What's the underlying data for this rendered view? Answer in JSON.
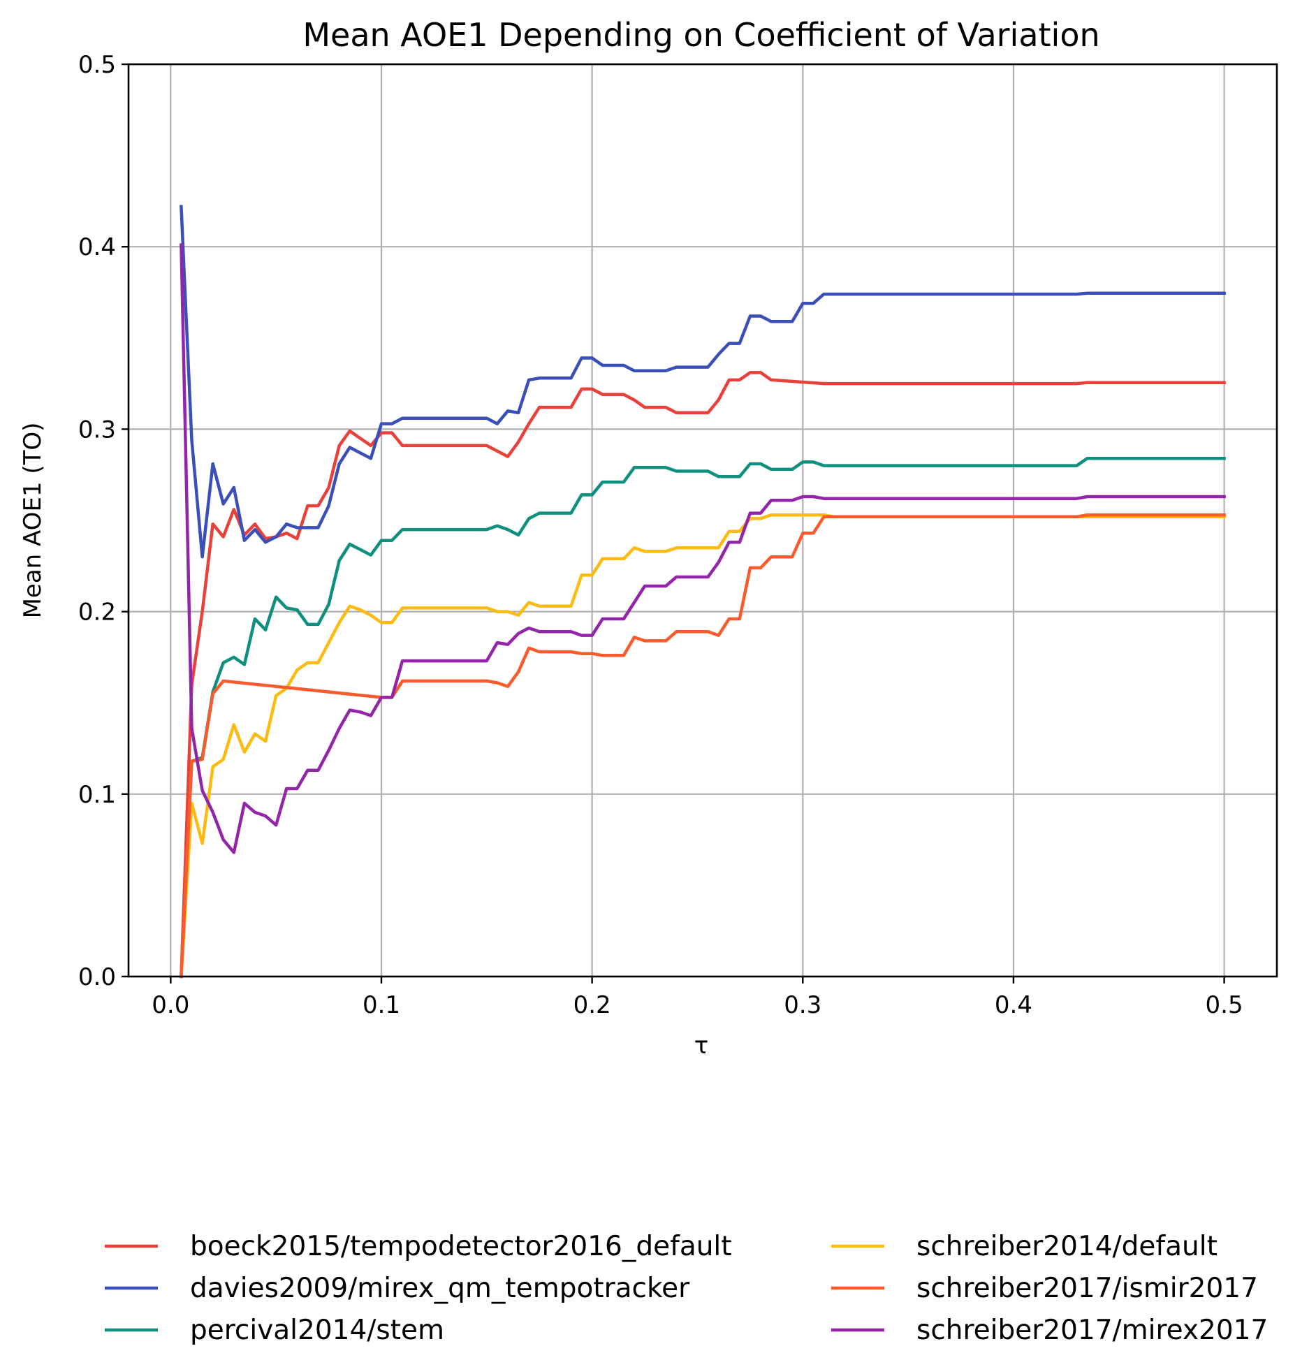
{
  "chart_data": {
    "type": "line",
    "title": "Mean AOE1 Depending on Coefficient of Variation",
    "xlabel": "τ",
    "ylabel": "Mean AOE1 (TO)",
    "xlim": [
      -0.02,
      0.525
    ],
    "ylim": [
      0.0,
      0.5
    ],
    "x_ticks": [
      0.0,
      0.1,
      0.2,
      0.3,
      0.4,
      0.5
    ],
    "x_tick_labels": [
      "0.0",
      "0.1",
      "0.2",
      "0.3",
      "0.4",
      "0.5"
    ],
    "y_ticks": [
      0.0,
      0.1,
      0.2,
      0.3,
      0.4,
      0.5
    ],
    "y_tick_labels": [
      "0.0",
      "0.1",
      "0.2",
      "0.3",
      "0.4",
      "0.5"
    ],
    "grid": true,
    "legend_position": "bottom, below plot, two columns",
    "series": [
      {
        "name": "boeck2015/tempodetector2016_default",
        "color": "#e8403a",
        "points": [
          [
            0.005,
            0.0
          ],
          [
            0.01,
            0.16
          ],
          [
            0.015,
            0.2
          ],
          [
            0.02,
            0.248
          ],
          [
            0.025,
            0.241
          ],
          [
            0.03,
            0.256
          ],
          [
            0.035,
            0.242
          ],
          [
            0.04,
            0.248
          ],
          [
            0.045,
            0.24
          ],
          [
            0.05,
            0.241
          ],
          [
            0.055,
            0.243
          ],
          [
            0.06,
            0.24
          ],
          [
            0.065,
            0.258
          ],
          [
            0.07,
            0.258
          ],
          [
            0.075,
            0.268
          ],
          [
            0.08,
            0.291
          ],
          [
            0.085,
            0.299
          ],
          [
            0.09,
            0.295
          ],
          [
            0.095,
            0.291
          ],
          [
            0.1,
            0.298
          ],
          [
            0.105,
            0.298
          ],
          [
            0.11,
            0.291
          ],
          [
            0.15,
            0.291
          ],
          [
            0.155,
            0.288
          ],
          [
            0.16,
            0.285
          ],
          [
            0.165,
            0.293
          ],
          [
            0.17,
            0.303
          ],
          [
            0.175,
            0.312
          ],
          [
            0.19,
            0.312
          ],
          [
            0.195,
            0.322
          ],
          [
            0.2,
            0.322
          ],
          [
            0.205,
            0.319
          ],
          [
            0.215,
            0.319
          ],
          [
            0.22,
            0.316
          ],
          [
            0.225,
            0.312
          ],
          [
            0.235,
            0.312
          ],
          [
            0.24,
            0.309
          ],
          [
            0.255,
            0.309
          ],
          [
            0.26,
            0.316
          ],
          [
            0.265,
            0.327
          ],
          [
            0.27,
            0.327
          ],
          [
            0.275,
            0.331
          ],
          [
            0.28,
            0.331
          ],
          [
            0.285,
            0.327
          ],
          [
            0.31,
            0.325
          ],
          [
            0.43,
            0.325
          ],
          [
            0.435,
            0.3255
          ],
          [
            0.5,
            0.3255
          ]
        ]
      },
      {
        "name": "davies2009/mirex_qm_tempotracker",
        "color": "#3b4fb8",
        "points": [
          [
            0.005,
            0.422
          ],
          [
            0.01,
            0.294
          ],
          [
            0.015,
            0.23
          ],
          [
            0.02,
            0.281
          ],
          [
            0.025,
            0.259
          ],
          [
            0.03,
            0.268
          ],
          [
            0.035,
            0.239
          ],
          [
            0.04,
            0.245
          ],
          [
            0.045,
            0.238
          ],
          [
            0.05,
            0.241
          ],
          [
            0.055,
            0.248
          ],
          [
            0.06,
            0.246
          ],
          [
            0.07,
            0.246
          ],
          [
            0.075,
            0.258
          ],
          [
            0.08,
            0.281
          ],
          [
            0.085,
            0.29
          ],
          [
            0.09,
            0.287
          ],
          [
            0.095,
            0.284
          ],
          [
            0.1,
            0.303
          ],
          [
            0.105,
            0.303
          ],
          [
            0.11,
            0.306
          ],
          [
            0.15,
            0.306
          ],
          [
            0.155,
            0.303
          ],
          [
            0.16,
            0.31
          ],
          [
            0.165,
            0.309
          ],
          [
            0.17,
            0.327
          ],
          [
            0.175,
            0.328
          ],
          [
            0.19,
            0.328
          ],
          [
            0.195,
            0.339
          ],
          [
            0.2,
            0.339
          ],
          [
            0.205,
            0.335
          ],
          [
            0.215,
            0.335
          ],
          [
            0.22,
            0.332
          ],
          [
            0.235,
            0.332
          ],
          [
            0.24,
            0.334
          ],
          [
            0.255,
            0.334
          ],
          [
            0.26,
            0.341
          ],
          [
            0.265,
            0.347
          ],
          [
            0.27,
            0.347
          ],
          [
            0.275,
            0.362
          ],
          [
            0.28,
            0.362
          ],
          [
            0.285,
            0.359
          ],
          [
            0.295,
            0.359
          ],
          [
            0.3,
            0.369
          ],
          [
            0.305,
            0.369
          ],
          [
            0.31,
            0.374
          ],
          [
            0.43,
            0.374
          ],
          [
            0.435,
            0.3745
          ],
          [
            0.5,
            0.3745
          ]
        ]
      },
      {
        "name": "percival2014/stem",
        "color": "#0f8f7e",
        "points": [
          [
            0.005,
            0.0
          ],
          [
            0.01,
            0.118
          ],
          [
            0.015,
            0.12
          ],
          [
            0.02,
            0.156
          ],
          [
            0.025,
            0.172
          ],
          [
            0.03,
            0.175
          ],
          [
            0.035,
            0.171
          ],
          [
            0.04,
            0.196
          ],
          [
            0.045,
            0.19
          ],
          [
            0.05,
            0.208
          ],
          [
            0.055,
            0.202
          ],
          [
            0.06,
            0.201
          ],
          [
            0.065,
            0.193
          ],
          [
            0.07,
            0.193
          ],
          [
            0.075,
            0.204
          ],
          [
            0.08,
            0.228
          ],
          [
            0.085,
            0.237
          ],
          [
            0.09,
            0.234
          ],
          [
            0.095,
            0.231
          ],
          [
            0.1,
            0.239
          ],
          [
            0.105,
            0.239
          ],
          [
            0.11,
            0.245
          ],
          [
            0.15,
            0.245
          ],
          [
            0.155,
            0.247
          ],
          [
            0.16,
            0.245
          ],
          [
            0.165,
            0.242
          ],
          [
            0.17,
            0.251
          ],
          [
            0.175,
            0.254
          ],
          [
            0.19,
            0.254
          ],
          [
            0.195,
            0.264
          ],
          [
            0.2,
            0.264
          ],
          [
            0.205,
            0.271
          ],
          [
            0.215,
            0.271
          ],
          [
            0.22,
            0.279
          ],
          [
            0.235,
            0.279
          ],
          [
            0.24,
            0.277
          ],
          [
            0.255,
            0.277
          ],
          [
            0.26,
            0.274
          ],
          [
            0.27,
            0.274
          ],
          [
            0.275,
            0.281
          ],
          [
            0.28,
            0.281
          ],
          [
            0.285,
            0.278
          ],
          [
            0.295,
            0.278
          ],
          [
            0.3,
            0.282
          ],
          [
            0.305,
            0.282
          ],
          [
            0.31,
            0.28
          ],
          [
            0.43,
            0.28
          ],
          [
            0.435,
            0.284
          ],
          [
            0.5,
            0.284
          ]
        ]
      },
      {
        "name": "schreiber2014/default",
        "color": "#fbbb10",
        "points": [
          [
            0.005,
            0.0
          ],
          [
            0.01,
            0.095
          ],
          [
            0.015,
            0.073
          ],
          [
            0.02,
            0.115
          ],
          [
            0.025,
            0.119
          ],
          [
            0.03,
            0.138
          ],
          [
            0.035,
            0.123
          ],
          [
            0.04,
            0.133
          ],
          [
            0.045,
            0.129
          ],
          [
            0.05,
            0.154
          ],
          [
            0.055,
            0.158
          ],
          [
            0.06,
            0.168
          ],
          [
            0.065,
            0.172
          ],
          [
            0.07,
            0.172
          ],
          [
            0.075,
            0.183
          ],
          [
            0.08,
            0.194
          ],
          [
            0.085,
            0.203
          ],
          [
            0.09,
            0.201
          ],
          [
            0.095,
            0.198
          ],
          [
            0.1,
            0.194
          ],
          [
            0.105,
            0.194
          ],
          [
            0.11,
            0.202
          ],
          [
            0.15,
            0.202
          ],
          [
            0.155,
            0.2
          ],
          [
            0.16,
            0.2
          ],
          [
            0.165,
            0.198
          ],
          [
            0.17,
            0.205
          ],
          [
            0.175,
            0.203
          ],
          [
            0.19,
            0.203
          ],
          [
            0.195,
            0.22
          ],
          [
            0.2,
            0.22
          ],
          [
            0.205,
            0.229
          ],
          [
            0.215,
            0.229
          ],
          [
            0.22,
            0.235
          ],
          [
            0.225,
            0.233
          ],
          [
            0.235,
            0.233
          ],
          [
            0.24,
            0.235
          ],
          [
            0.26,
            0.235
          ],
          [
            0.265,
            0.244
          ],
          [
            0.27,
            0.244
          ],
          [
            0.275,
            0.251
          ],
          [
            0.28,
            0.251
          ],
          [
            0.285,
            0.253
          ],
          [
            0.31,
            0.253
          ],
          [
            0.315,
            0.252
          ],
          [
            0.5,
            0.252
          ]
        ]
      },
      {
        "name": "schreiber2017/ismir2017",
        "color": "#fa5b2c",
        "points": [
          [
            0.005,
            0.0
          ],
          [
            0.01,
            0.118
          ],
          [
            0.015,
            0.119
          ],
          [
            0.02,
            0.155
          ],
          [
            0.025,
            0.162
          ],
          [
            0.1,
            0.153
          ],
          [
            0.105,
            0.153
          ],
          [
            0.11,
            0.162
          ],
          [
            0.15,
            0.162
          ],
          [
            0.155,
            0.161
          ],
          [
            0.16,
            0.159
          ],
          [
            0.165,
            0.167
          ],
          [
            0.17,
            0.18
          ],
          [
            0.175,
            0.178
          ],
          [
            0.19,
            0.178
          ],
          [
            0.195,
            0.177
          ],
          [
            0.2,
            0.177
          ],
          [
            0.205,
            0.176
          ],
          [
            0.215,
            0.176
          ],
          [
            0.22,
            0.186
          ],
          [
            0.225,
            0.184
          ],
          [
            0.235,
            0.184
          ],
          [
            0.24,
            0.189
          ],
          [
            0.255,
            0.189
          ],
          [
            0.26,
            0.187
          ],
          [
            0.265,
            0.196
          ],
          [
            0.27,
            0.196
          ],
          [
            0.275,
            0.224
          ],
          [
            0.28,
            0.224
          ],
          [
            0.285,
            0.23
          ],
          [
            0.295,
            0.23
          ],
          [
            0.3,
            0.243
          ],
          [
            0.305,
            0.243
          ],
          [
            0.31,
            0.252
          ],
          [
            0.43,
            0.252
          ],
          [
            0.435,
            0.253
          ],
          [
            0.5,
            0.253
          ]
        ]
      },
      {
        "name": "schreiber2017/mirex2017",
        "color": "#9326a8",
        "points": [
          [
            0.005,
            0.401
          ],
          [
            0.01,
            0.136
          ],
          [
            0.015,
            0.102
          ],
          [
            0.02,
            0.09
          ],
          [
            0.025,
            0.075
          ],
          [
            0.03,
            0.068
          ],
          [
            0.035,
            0.095
          ],
          [
            0.04,
            0.09
          ],
          [
            0.045,
            0.088
          ],
          [
            0.05,
            0.083
          ],
          [
            0.055,
            0.103
          ],
          [
            0.06,
            0.103
          ],
          [
            0.065,
            0.113
          ],
          [
            0.07,
            0.113
          ],
          [
            0.075,
            0.124
          ],
          [
            0.08,
            0.136
          ],
          [
            0.085,
            0.146
          ],
          [
            0.09,
            0.145
          ],
          [
            0.095,
            0.143
          ],
          [
            0.1,
            0.153
          ],
          [
            0.105,
            0.153
          ],
          [
            0.11,
            0.173
          ],
          [
            0.15,
            0.173
          ],
          [
            0.155,
            0.183
          ],
          [
            0.16,
            0.182
          ],
          [
            0.165,
            0.188
          ],
          [
            0.17,
            0.191
          ],
          [
            0.175,
            0.189
          ],
          [
            0.19,
            0.189
          ],
          [
            0.195,
            0.187
          ],
          [
            0.2,
            0.187
          ],
          [
            0.205,
            0.196
          ],
          [
            0.215,
            0.196
          ],
          [
            0.22,
            0.205
          ],
          [
            0.225,
            0.214
          ],
          [
            0.235,
            0.214
          ],
          [
            0.24,
            0.219
          ],
          [
            0.255,
            0.219
          ],
          [
            0.26,
            0.227
          ],
          [
            0.265,
            0.238
          ],
          [
            0.27,
            0.238
          ],
          [
            0.275,
            0.254
          ],
          [
            0.28,
            0.254
          ],
          [
            0.285,
            0.261
          ],
          [
            0.295,
            0.261
          ],
          [
            0.3,
            0.263
          ],
          [
            0.305,
            0.263
          ],
          [
            0.31,
            0.262
          ],
          [
            0.43,
            0.262
          ],
          [
            0.435,
            0.263
          ],
          [
            0.5,
            0.263
          ]
        ]
      }
    ]
  }
}
